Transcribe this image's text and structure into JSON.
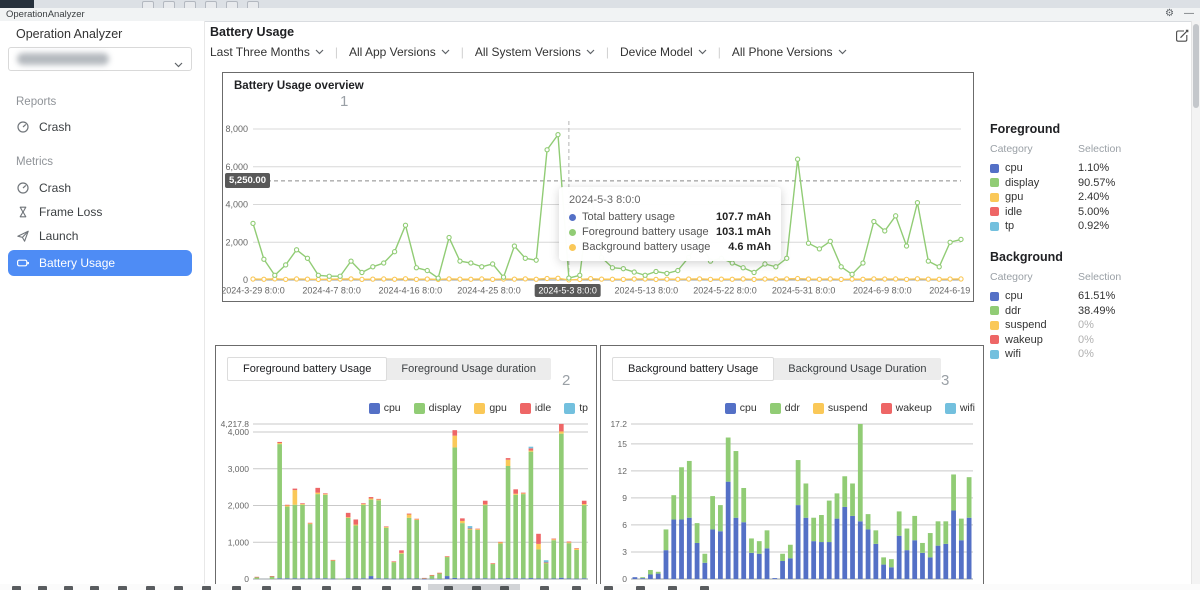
{
  "window": {
    "tab_title": "OperationAnalyzer",
    "gear_icon": "⚙",
    "minimize_icon": "—"
  },
  "sidebar": {
    "title": "Operation Analyzer",
    "sections": [
      {
        "label": "Reports",
        "items": [
          {
            "label": "Crash",
            "icon": "gauge",
            "selected": false
          }
        ]
      },
      {
        "label": "Metrics",
        "items": [
          {
            "label": "Crash",
            "icon": "gauge",
            "selected": false
          },
          {
            "label": "Frame Loss",
            "icon": "hourglass",
            "selected": false
          },
          {
            "label": "Launch",
            "icon": "plane",
            "selected": false
          },
          {
            "label": "Battery Usage",
            "icon": "battery",
            "selected": true
          }
        ]
      }
    ]
  },
  "header": {
    "title": "Battery Usage"
  },
  "filters": [
    {
      "label": "Last Three Months"
    },
    {
      "label": "All App Versions"
    },
    {
      "label": "All System Versions"
    },
    {
      "label": "Device Model"
    },
    {
      "label": "All Phone Versions"
    }
  ],
  "annotations": {
    "chart1": "1",
    "chart2": "2",
    "chart3": "3"
  },
  "palette": [
    "#5470c6",
    "#91cc75",
    "#fac858",
    "#ee6666",
    "#73c0de"
  ],
  "side_tables": {
    "foreground": {
      "title": "Foreground",
      "columns": [
        "Category",
        "Selection"
      ],
      "rows": [
        {
          "category": "cpu",
          "value": "1.10%",
          "muted": false
        },
        {
          "category": "display",
          "value": "90.57%",
          "muted": false
        },
        {
          "category": "gpu",
          "value": "2.40%",
          "muted": false
        },
        {
          "category": "idle",
          "value": "5.00%",
          "muted": false
        },
        {
          "category": "tp",
          "value": "0.92%",
          "muted": false
        }
      ]
    },
    "background": {
      "title": "Background",
      "columns": [
        "Category",
        "Selection"
      ],
      "rows": [
        {
          "category": "cpu",
          "value": "61.51%",
          "muted": false
        },
        {
          "category": "ddr",
          "value": "38.49%",
          "muted": false
        },
        {
          "category": "suspend",
          "value": "0%",
          "muted": true
        },
        {
          "category": "wakeup",
          "value": "0%",
          "muted": true
        },
        {
          "category": "wifi",
          "value": "0%",
          "muted": true
        }
      ]
    }
  },
  "chart_data": [
    {
      "id": "overview",
      "type": "line",
      "title": "Battery Usage overview",
      "x_labels": [
        "2024-3-29 8:0:0",
        "2024-4-7 8:0:0",
        "2024-4-16 8:0:0",
        "2024-4-25 8:0:0",
        "2024-5-3 8:0:0",
        "2024-5-13 8:0:0",
        "2024-5-22 8:0:0",
        "2024-5-31 8:0:0",
        "2024-6-9 8:0:0",
        "2024-6-19 8:0:0"
      ],
      "highlighted_x_label_index": 4,
      "y_ticks": [
        8000,
        6000,
        4000,
        2000,
        0
      ],
      "y_tick_labels": [
        "8,000",
        "6,000",
        "4,000",
        "2,000",
        "0"
      ],
      "ylim": [
        0,
        8400
      ],
      "unit": "mAh",
      "series": [
        {
          "name": "Foreground battery usage",
          "color": "#91cc75",
          "values": [
            3000,
            1100,
            250,
            800,
            1600,
            1150,
            250,
            200,
            200,
            1000,
            400,
            700,
            900,
            1500,
            2900,
            650,
            500,
            100,
            2250,
            1000,
            900,
            700,
            850,
            150,
            1800,
            1150,
            1050,
            6900,
            7700,
            103,
            250,
            4760,
            1200,
            650,
            600,
            420,
            250,
            450,
            350,
            500,
            1200,
            2100,
            1000,
            1150,
            900,
            650,
            400,
            850,
            700,
            1150,
            6400,
            1950,
            1650,
            2050,
            700,
            300,
            900,
            3100,
            2600,
            3400,
            1800,
            4100,
            1000,
            700,
            2000,
            2150
          ]
        },
        {
          "name": "Background battery usage",
          "color": "#fac858",
          "values": [
            50,
            40,
            60,
            35,
            55,
            45,
            30,
            40,
            50,
            60,
            35,
            45,
            55,
            40,
            65,
            35,
            50,
            30,
            60,
            45,
            40,
            55,
            35,
            50,
            45,
            60,
            40,
            80,
            90,
            5,
            30,
            70,
            45,
            40,
            35,
            50,
            55,
            30,
            45,
            40,
            50,
            60,
            35,
            45,
            40,
            55,
            30,
            50,
            45,
            60,
            75,
            50,
            40,
            55,
            30,
            45,
            40,
            60,
            50,
            55,
            35,
            65,
            45,
            40,
            50,
            55
          ]
        }
      ],
      "ref_line": {
        "value": 5250,
        "label": "5,250.00"
      },
      "crosshair_index": 29,
      "tooltip": {
        "title": "2024-5-3 8:0:0",
        "rows": [
          {
            "label": "Total battery usage",
            "value": "107.7 mAh",
            "color": "#5470c6"
          },
          {
            "label": "Foreground battery usage",
            "value": "103.1 mAh",
            "color": "#91cc75"
          },
          {
            "label": "Background battery usage",
            "value": "4.6 mAh",
            "color": "#fac858"
          }
        ]
      }
    },
    {
      "id": "foreground-usage",
      "type": "bar",
      "tabs": [
        "Foreground battery Usage",
        "Foreground Usage duration"
      ],
      "active_tab": 0,
      "legend": [
        "cpu",
        "display",
        "gpu",
        "idle",
        "tp"
      ],
      "y_ticks": [
        0,
        1000,
        2000,
        3000,
        4000,
        4217.8
      ],
      "y_tick_labels": [
        "0",
        "1,000",
        "2,000",
        "3,000",
        "4,000",
        "4,217.8"
      ],
      "ylim": [
        0,
        4217.8
      ],
      "stacks": [
        [
          0,
          50,
          0,
          10,
          0
        ],
        [
          0,
          0,
          0,
          0,
          0
        ],
        [
          0,
          70,
          0,
          10,
          0
        ],
        [
          20,
          3650,
          30,
          30,
          0
        ],
        [
          20,
          1950,
          30,
          20,
          0
        ],
        [
          20,
          2000,
          400,
          40,
          0
        ],
        [
          20,
          2000,
          20,
          20,
          0
        ],
        [
          15,
          1480,
          20,
          15,
          0
        ],
        [
          20,
          2290,
          40,
          130,
          0
        ],
        [
          20,
          2270,
          20,
          20,
          0
        ],
        [
          10,
          490,
          10,
          10,
          0
        ],
        [
          0,
          10,
          0,
          0,
          0
        ],
        [
          20,
          1640,
          20,
          120,
          0
        ],
        [
          15,
          1440,
          25,
          140,
          0
        ],
        [
          20,
          2000,
          20,
          20,
          0
        ],
        [
          80,
          2080,
          30,
          40,
          0
        ],
        [
          20,
          2120,
          20,
          20,
          0
        ],
        [
          15,
          1380,
          20,
          15,
          0
        ],
        [
          10,
          450,
          10,
          10,
          0
        ],
        [
          10,
          680,
          20,
          70,
          0
        ],
        [
          15,
          1650,
          90,
          25,
          0
        ],
        [
          15,
          1590,
          20,
          15,
          0
        ],
        [
          5,
          20,
          0,
          5,
          0
        ],
        [
          5,
          95,
          5,
          5,
          0
        ],
        [
          5,
          155,
          5,
          5,
          0
        ],
        [
          80,
          520,
          10,
          10,
          0
        ],
        [
          30,
          3550,
          320,
          150,
          0
        ],
        [
          20,
          1500,
          60,
          70,
          0
        ],
        [
          15,
          1330,
          15,
          15,
          65
        ],
        [
          15,
          1320,
          20,
          15,
          0
        ],
        [
          20,
          1990,
          20,
          100,
          0
        ],
        [
          10,
          400,
          10,
          10,
          0
        ],
        [
          15,
          950,
          30,
          15,
          0
        ],
        [
          25,
          3050,
          170,
          45,
          0
        ],
        [
          20,
          2270,
          30,
          120,
          0
        ],
        [
          20,
          2290,
          20,
          20,
          0
        ],
        [
          25,
          3440,
          30,
          60,
          45
        ],
        [
          15,
          790,
          150,
          275,
          0
        ],
        [
          10,
          420,
          10,
          10,
          60
        ],
        [
          15,
          1040,
          25,
          20,
          0
        ],
        [
          35,
          3920,
          60,
          205,
          0
        ],
        [
          15,
          960,
          25,
          20,
          0
        ],
        [
          10,
          780,
          35,
          15,
          0
        ],
        [
          20,
          1990,
          30,
          90,
          0
        ]
      ]
    },
    {
      "id": "background-usage",
      "type": "bar",
      "tabs": [
        "Background battery Usage",
        "Background Usage Duration"
      ],
      "active_tab": 0,
      "legend": [
        "cpu",
        "ddr",
        "suspend",
        "wakeup",
        "wifi"
      ],
      "y_ticks": [
        0,
        3,
        6,
        9,
        12,
        15,
        17.2
      ],
      "y_tick_labels": [
        "0",
        "3",
        "6",
        "9",
        "12",
        "15",
        "17.2"
      ],
      "ylim": [
        0,
        17.2
      ],
      "stacks": [
        [
          0.2,
          0
        ],
        [
          0.1,
          0.1
        ],
        [
          0.5,
          0.5
        ],
        [
          0.6,
          0.2
        ],
        [
          3.2,
          2.3
        ],
        [
          6.6,
          2.7
        ],
        [
          6.6,
          5.8
        ],
        [
          6.8,
          6.3
        ],
        [
          4.0,
          2.2
        ],
        [
          1.8,
          1.0
        ],
        [
          5.5,
          3.7
        ],
        [
          5.3,
          2.9
        ],
        [
          10.8,
          4.9
        ],
        [
          6.8,
          7.4
        ],
        [
          6.3,
          3.8
        ],
        [
          2.9,
          1.6
        ],
        [
          2.8,
          1.4
        ],
        [
          3.4,
          2.0
        ],
        [
          0.1,
          0
        ],
        [
          2.0,
          0.8
        ],
        [
          2.3,
          1.5
        ],
        [
          8.2,
          5.0
        ],
        [
          6.8,
          3.8
        ],
        [
          4.2,
          2.6
        ],
        [
          4.1,
          3.0
        ],
        [
          4.1,
          4.6
        ],
        [
          6.7,
          2.8
        ],
        [
          8.0,
          3.4
        ],
        [
          7.0,
          3.6
        ],
        [
          6.4,
          10.8
        ],
        [
          5.5,
          1.7
        ],
        [
          3.9,
          1.5
        ],
        [
          1.6,
          0.8
        ],
        [
          1.3,
          0.9
        ],
        [
          4.8,
          2.7
        ],
        [
          3.2,
          2.4
        ],
        [
          4.3,
          2.7
        ],
        [
          2.9,
          1.1
        ],
        [
          2.4,
          2.7
        ],
        [
          3.7,
          2.7
        ],
        [
          3.9,
          2.5
        ],
        [
          7.6,
          4.0
        ],
        [
          4.3,
          2.4
        ],
        [
          6.8,
          4.5
        ]
      ]
    }
  ]
}
